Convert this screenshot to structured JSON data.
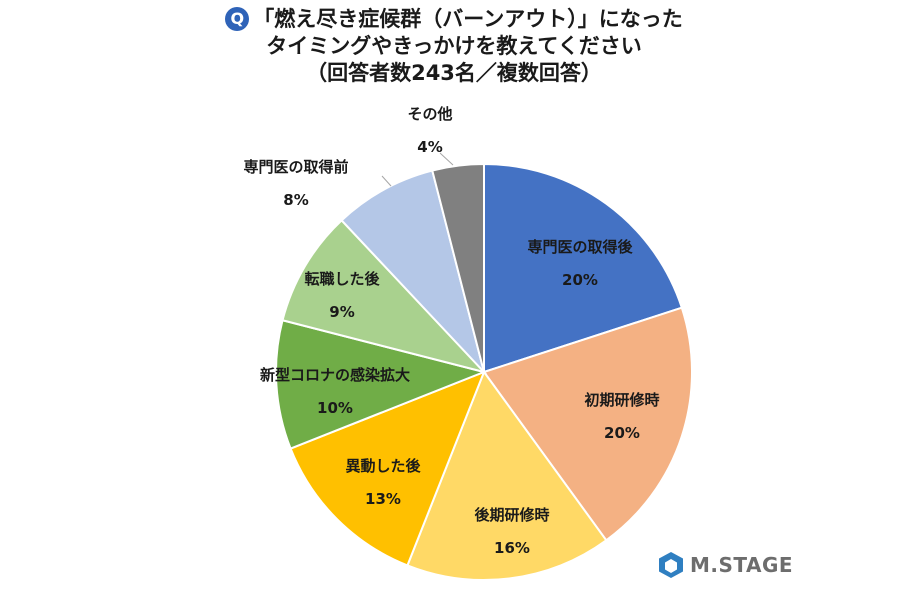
{
  "title": {
    "badge": "Q",
    "line1": "「燃え尽き症候群（バーンアウト）」になった",
    "line2": "タイミングやきっかけを教えてください",
    "line3": "（回答者数243名／複数回答）"
  },
  "chart_data": {
    "type": "pie",
    "slices": [
      {
        "label": "専門医の取得後",
        "value": 20,
        "display": "20%",
        "color": "#4472c4"
      },
      {
        "label": "初期研修時",
        "value": 20,
        "display": "20%",
        "color": "#f4b183"
      },
      {
        "label": "後期研修時",
        "value": 16,
        "display": "16%",
        "color": "#ffd966"
      },
      {
        "label": "異動した後",
        "value": 13,
        "display": "13%",
        "color": "#ffc000"
      },
      {
        "label": "新型コロナの感染拡大",
        "value": 10,
        "display": "10%",
        "color": "#70ad47"
      },
      {
        "label": "転職した後",
        "value": 9,
        "display": "9%",
        "color": "#a9d18e"
      },
      {
        "label": "専門医の取得前",
        "value": 8,
        "display": "8%",
        "color": "#b4c7e7"
      },
      {
        "label": "その他",
        "value": 4,
        "display": "4%",
        "color": "#808080"
      }
    ],
    "start": "12 o'clock",
    "direction": "clockwise"
  },
  "logo": {
    "text": "M.STAGE",
    "icon": "hexagon-logo-icon",
    "color": "#6d6d6d",
    "accent": "#2f7fc1"
  }
}
